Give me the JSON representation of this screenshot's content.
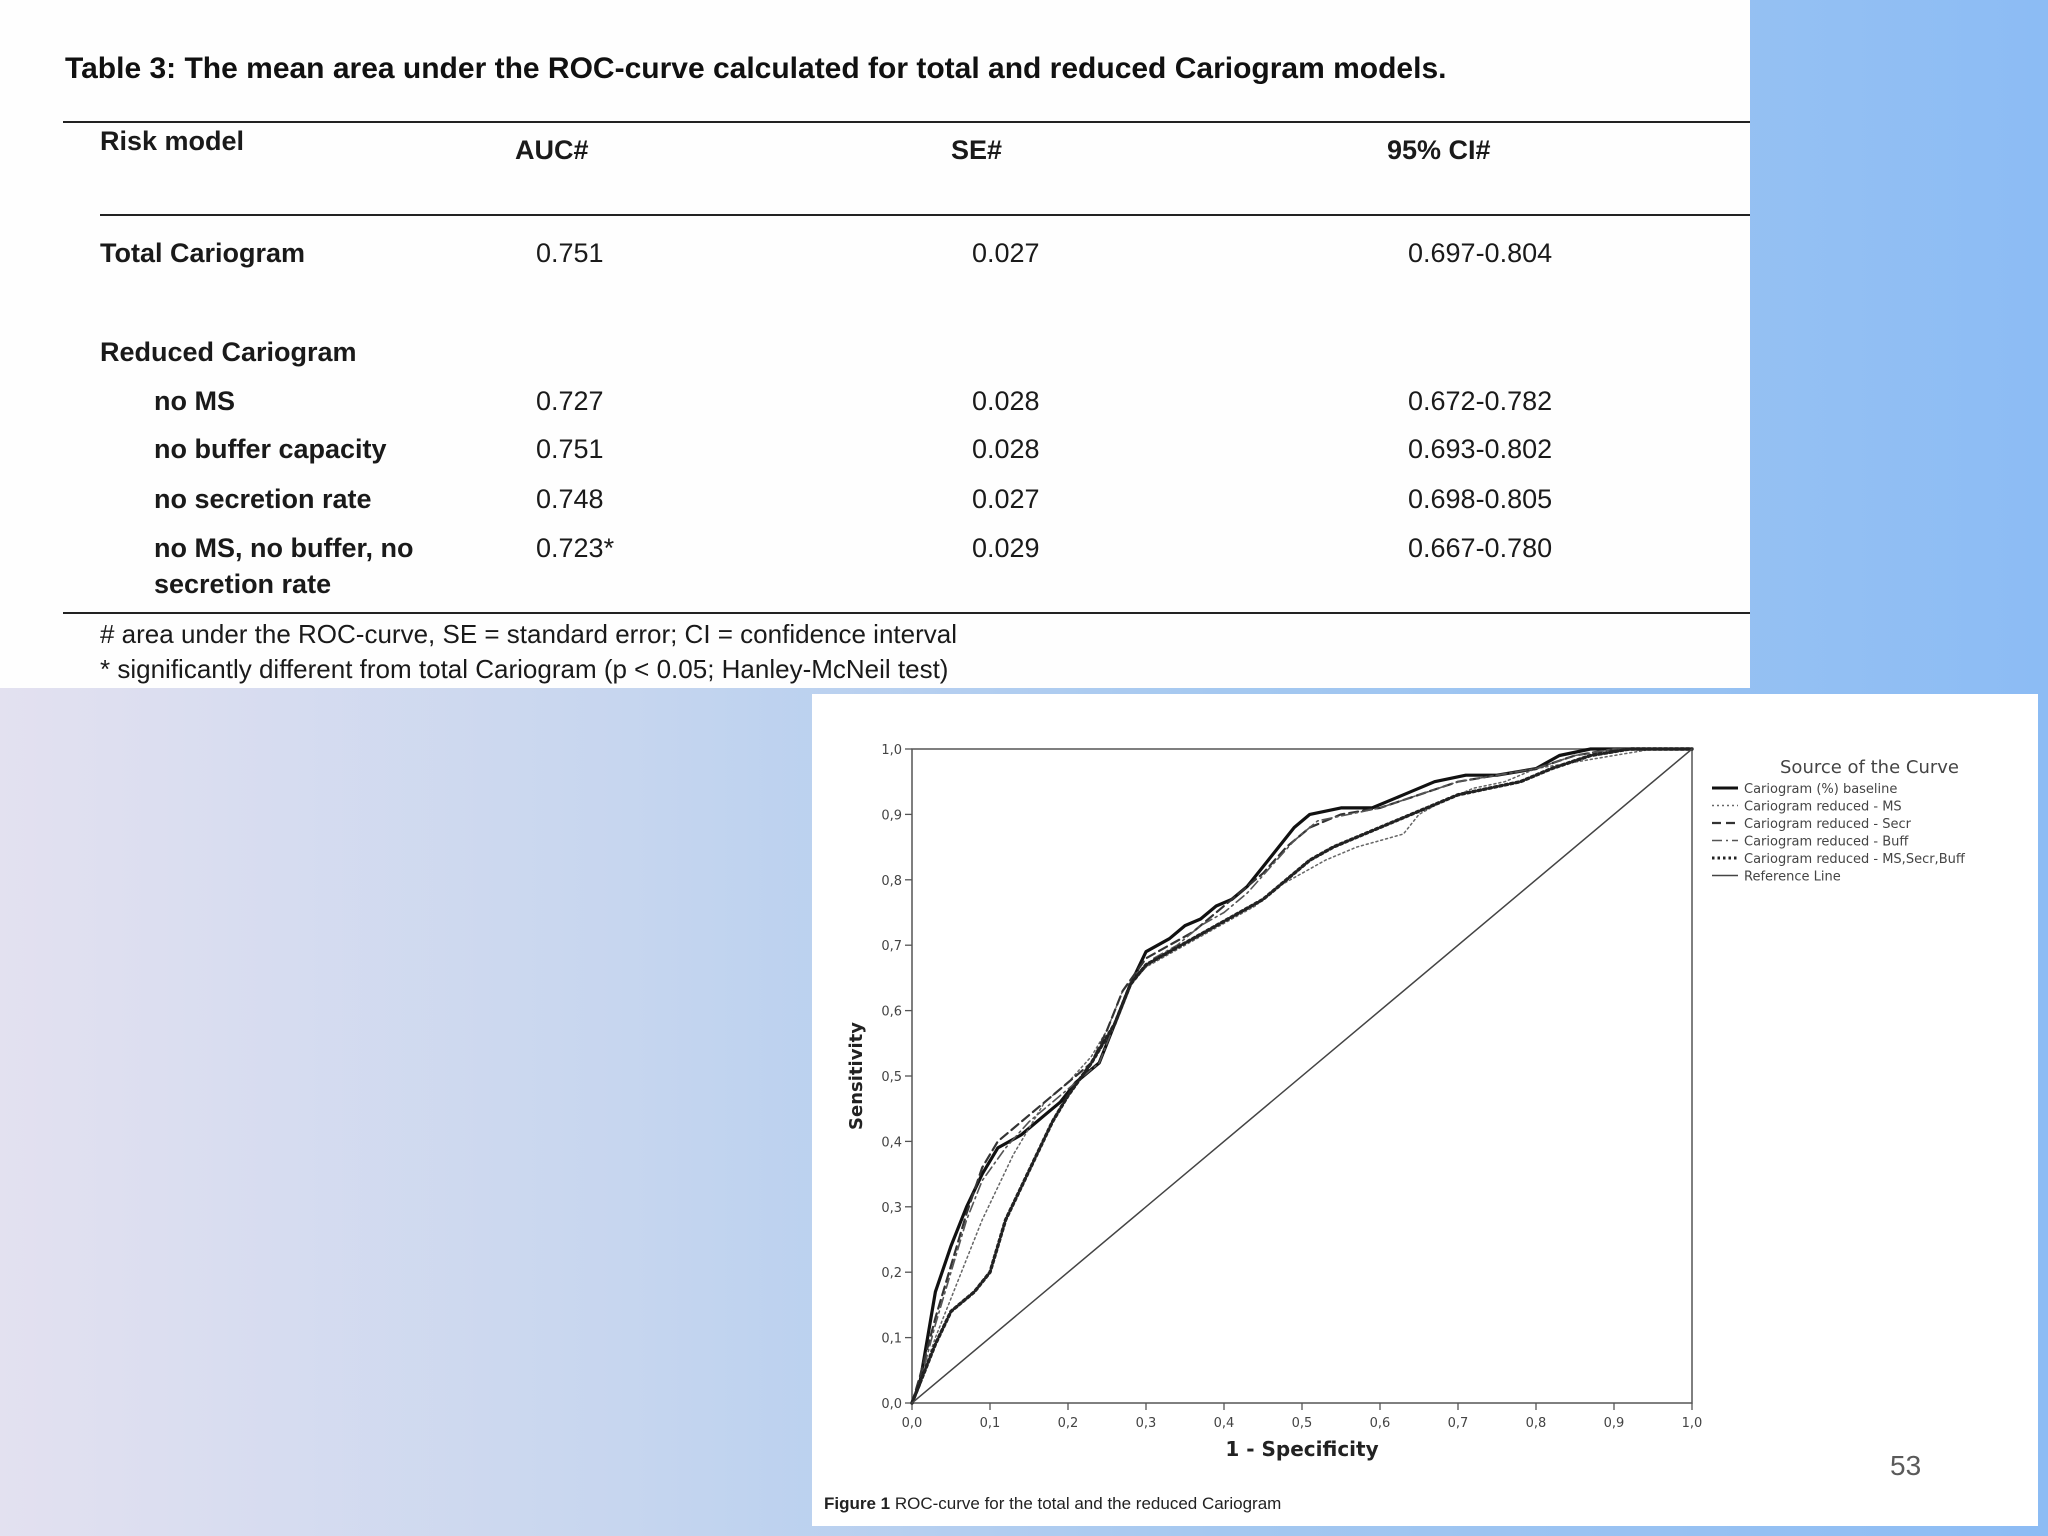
{
  "table": {
    "title": "Table 3: The mean area under the ROC-curve calculated for total and reduced Cariogram models.",
    "headers": {
      "model": "Risk model",
      "auc": "AUC#",
      "se": "SE#",
      "ci": "95% CI#"
    },
    "total": {
      "label": "Total Cariogram",
      "auc": "0.751",
      "se": "0.027",
      "ci": "0.697-0.804"
    },
    "reduced_label": "Reduced Cariogram",
    "rows": [
      {
        "label": "no MS",
        "auc": "0.727",
        "se": "0.028",
        "ci": "0.672-0.782"
      },
      {
        "label": "no buffer capacity",
        "auc": "0.751",
        "se": "0.028",
        "ci": "0.693-0.802"
      },
      {
        "label": "no secretion rate",
        "auc": "0.748",
        "se": "0.027",
        "ci": "0.698-0.805"
      },
      {
        "label_line1": "no MS, no buffer, no",
        "label_line2": "secretion rate",
        "auc": "0.723*",
        "se": "0.029",
        "ci": "0.667-0.780"
      }
    ],
    "footnote1": "# area under the ROC-curve, SE = standard error; CI = confidence interval",
    "footnote2": "* significantly different from total Cariogram (p < 0.05; Hanley-McNeil test)"
  },
  "figure": {
    "caption_bold": "Figure 1",
    "caption_text": " ROC-curve for the total and the reduced Cariogram"
  },
  "page_number": "53",
  "chart_data": {
    "type": "line",
    "xlabel": "1 - Specificity",
    "ylabel": "Sensitivity",
    "xlim": [
      0,
      1
    ],
    "ylim": [
      0,
      1
    ],
    "x_ticks": [
      "0,0",
      "0,1",
      "0,2",
      "0,3",
      "0,4",
      "0,5",
      "0,6",
      "0,7",
      "0,8",
      "0,9",
      "1,0"
    ],
    "y_ticks": [
      "0,0",
      "0,1",
      "0,2",
      "0,3",
      "0,4",
      "0,5",
      "0,6",
      "0,7",
      "0,8",
      "0,9",
      "1,0"
    ],
    "legend_title": "Source of the Curve",
    "legend_position": "right",
    "series": [
      {
        "name": "Cariogram (%) baseline",
        "style": "solid-thick",
        "points": [
          [
            0,
            0
          ],
          [
            0.01,
            0.03
          ],
          [
            0.02,
            0.1
          ],
          [
            0.03,
            0.17
          ],
          [
            0.05,
            0.24
          ],
          [
            0.07,
            0.3
          ],
          [
            0.09,
            0.35
          ],
          [
            0.11,
            0.39
          ],
          [
            0.14,
            0.41
          ],
          [
            0.17,
            0.44
          ],
          [
            0.19,
            0.46
          ],
          [
            0.21,
            0.49
          ],
          [
            0.24,
            0.52
          ],
          [
            0.26,
            0.58
          ],
          [
            0.28,
            0.64
          ],
          [
            0.3,
            0.69
          ],
          [
            0.33,
            0.71
          ],
          [
            0.35,
            0.73
          ],
          [
            0.37,
            0.74
          ],
          [
            0.39,
            0.76
          ],
          [
            0.41,
            0.77
          ],
          [
            0.43,
            0.79
          ],
          [
            0.45,
            0.82
          ],
          [
            0.47,
            0.85
          ],
          [
            0.49,
            0.88
          ],
          [
            0.51,
            0.9
          ],
          [
            0.55,
            0.91
          ],
          [
            0.59,
            0.91
          ],
          [
            0.63,
            0.93
          ],
          [
            0.67,
            0.95
          ],
          [
            0.71,
            0.96
          ],
          [
            0.75,
            0.96
          ],
          [
            0.8,
            0.97
          ],
          [
            0.83,
            0.99
          ],
          [
            0.87,
            1.0
          ],
          [
            0.93,
            1.0
          ],
          [
            1,
            1
          ]
        ]
      },
      {
        "name": "Cariogram reduced - MS",
        "style": "dotted-thin",
        "points": [
          [
            0,
            0
          ],
          [
            0.01,
            0.03
          ],
          [
            0.03,
            0.1
          ],
          [
            0.05,
            0.16
          ],
          [
            0.07,
            0.22
          ],
          [
            0.09,
            0.28
          ],
          [
            0.11,
            0.33
          ],
          [
            0.13,
            0.38
          ],
          [
            0.15,
            0.42
          ],
          [
            0.17,
            0.46
          ],
          [
            0.2,
            0.49
          ],
          [
            0.23,
            0.53
          ],
          [
            0.25,
            0.57
          ],
          [
            0.27,
            0.63
          ],
          [
            0.29,
            0.66
          ],
          [
            0.32,
            0.68
          ],
          [
            0.35,
            0.7
          ],
          [
            0.38,
            0.72
          ],
          [
            0.41,
            0.74
          ],
          [
            0.44,
            0.76
          ],
          [
            0.47,
            0.79
          ],
          [
            0.5,
            0.81
          ],
          [
            0.53,
            0.83
          ],
          [
            0.57,
            0.85
          ],
          [
            0.6,
            0.86
          ],
          [
            0.63,
            0.87
          ],
          [
            0.65,
            0.9
          ],
          [
            0.68,
            0.92
          ],
          [
            0.72,
            0.94
          ],
          [
            0.76,
            0.95
          ],
          [
            0.8,
            0.97
          ],
          [
            0.85,
            0.98
          ],
          [
            0.9,
            0.99
          ],
          [
            0.95,
            1.0
          ],
          [
            1,
            1
          ]
        ]
      },
      {
        "name": "Cariogram reduced - Secr",
        "style": "dashed",
        "points": [
          [
            0,
            0
          ],
          [
            0.01,
            0.04
          ],
          [
            0.03,
            0.13
          ],
          [
            0.05,
            0.21
          ],
          [
            0.07,
            0.29
          ],
          [
            0.09,
            0.36
          ],
          [
            0.11,
            0.4
          ],
          [
            0.14,
            0.43
          ],
          [
            0.17,
            0.46
          ],
          [
            0.2,
            0.49
          ],
          [
            0.23,
            0.52
          ],
          [
            0.25,
            0.57
          ],
          [
            0.27,
            0.63
          ],
          [
            0.3,
            0.68
          ],
          [
            0.33,
            0.7
          ],
          [
            0.36,
            0.72
          ],
          [
            0.39,
            0.75
          ],
          [
            0.42,
            0.78
          ],
          [
            0.45,
            0.81
          ],
          [
            0.48,
            0.85
          ],
          [
            0.51,
            0.88
          ],
          [
            0.55,
            0.9
          ],
          [
            0.6,
            0.91
          ],
          [
            0.65,
            0.93
          ],
          [
            0.7,
            0.95
          ],
          [
            0.75,
            0.96
          ],
          [
            0.8,
            0.97
          ],
          [
            0.85,
            0.99
          ],
          [
            0.9,
            1.0
          ],
          [
            1,
            1
          ]
        ]
      },
      {
        "name": "Cariogram reduced - Buff",
        "style": "dash-dot",
        "points": [
          [
            0,
            0
          ],
          [
            0.01,
            0.03
          ],
          [
            0.03,
            0.12
          ],
          [
            0.05,
            0.2
          ],
          [
            0.07,
            0.28
          ],
          [
            0.09,
            0.34
          ],
          [
            0.12,
            0.39
          ],
          [
            0.15,
            0.43
          ],
          [
            0.18,
            0.46
          ],
          [
            0.21,
            0.49
          ],
          [
            0.24,
            0.52
          ],
          [
            0.26,
            0.58
          ],
          [
            0.28,
            0.64
          ],
          [
            0.31,
            0.68
          ],
          [
            0.34,
            0.7
          ],
          [
            0.37,
            0.73
          ],
          [
            0.4,
            0.75
          ],
          [
            0.43,
            0.78
          ],
          [
            0.46,
            0.82
          ],
          [
            0.49,
            0.86
          ],
          [
            0.52,
            0.89
          ],
          [
            0.56,
            0.9
          ],
          [
            0.6,
            0.91
          ],
          [
            0.65,
            0.93
          ],
          [
            0.7,
            0.95
          ],
          [
            0.75,
            0.96
          ],
          [
            0.8,
            0.97
          ],
          [
            0.85,
            0.99
          ],
          [
            0.9,
            1.0
          ],
          [
            1,
            1
          ]
        ]
      },
      {
        "name": "Cariogram reduced - MS,Secr,Buff",
        "style": "dotted-thick",
        "points": [
          [
            0,
            0
          ],
          [
            0.01,
            0.03
          ],
          [
            0.03,
            0.09
          ],
          [
            0.05,
            0.14
          ],
          [
            0.08,
            0.17
          ],
          [
            0.1,
            0.2
          ],
          [
            0.12,
            0.28
          ],
          [
            0.14,
            0.33
          ],
          [
            0.16,
            0.38
          ],
          [
            0.18,
            0.43
          ],
          [
            0.2,
            0.47
          ],
          [
            0.23,
            0.52
          ],
          [
            0.26,
            0.58
          ],
          [
            0.28,
            0.64
          ],
          [
            0.3,
            0.67
          ],
          [
            0.33,
            0.69
          ],
          [
            0.36,
            0.71
          ],
          [
            0.39,
            0.73
          ],
          [
            0.42,
            0.75
          ],
          [
            0.45,
            0.77
          ],
          [
            0.48,
            0.8
          ],
          [
            0.51,
            0.83
          ],
          [
            0.54,
            0.85
          ],
          [
            0.58,
            0.87
          ],
          [
            0.62,
            0.89
          ],
          [
            0.66,
            0.91
          ],
          [
            0.7,
            0.93
          ],
          [
            0.74,
            0.94
          ],
          [
            0.78,
            0.95
          ],
          [
            0.82,
            0.97
          ],
          [
            0.87,
            0.99
          ],
          [
            0.92,
            1.0
          ],
          [
            1,
            1
          ]
        ]
      },
      {
        "name": "Reference Line",
        "style": "solid-thin",
        "points": [
          [
            0,
            0
          ],
          [
            1,
            1
          ]
        ]
      }
    ]
  }
}
